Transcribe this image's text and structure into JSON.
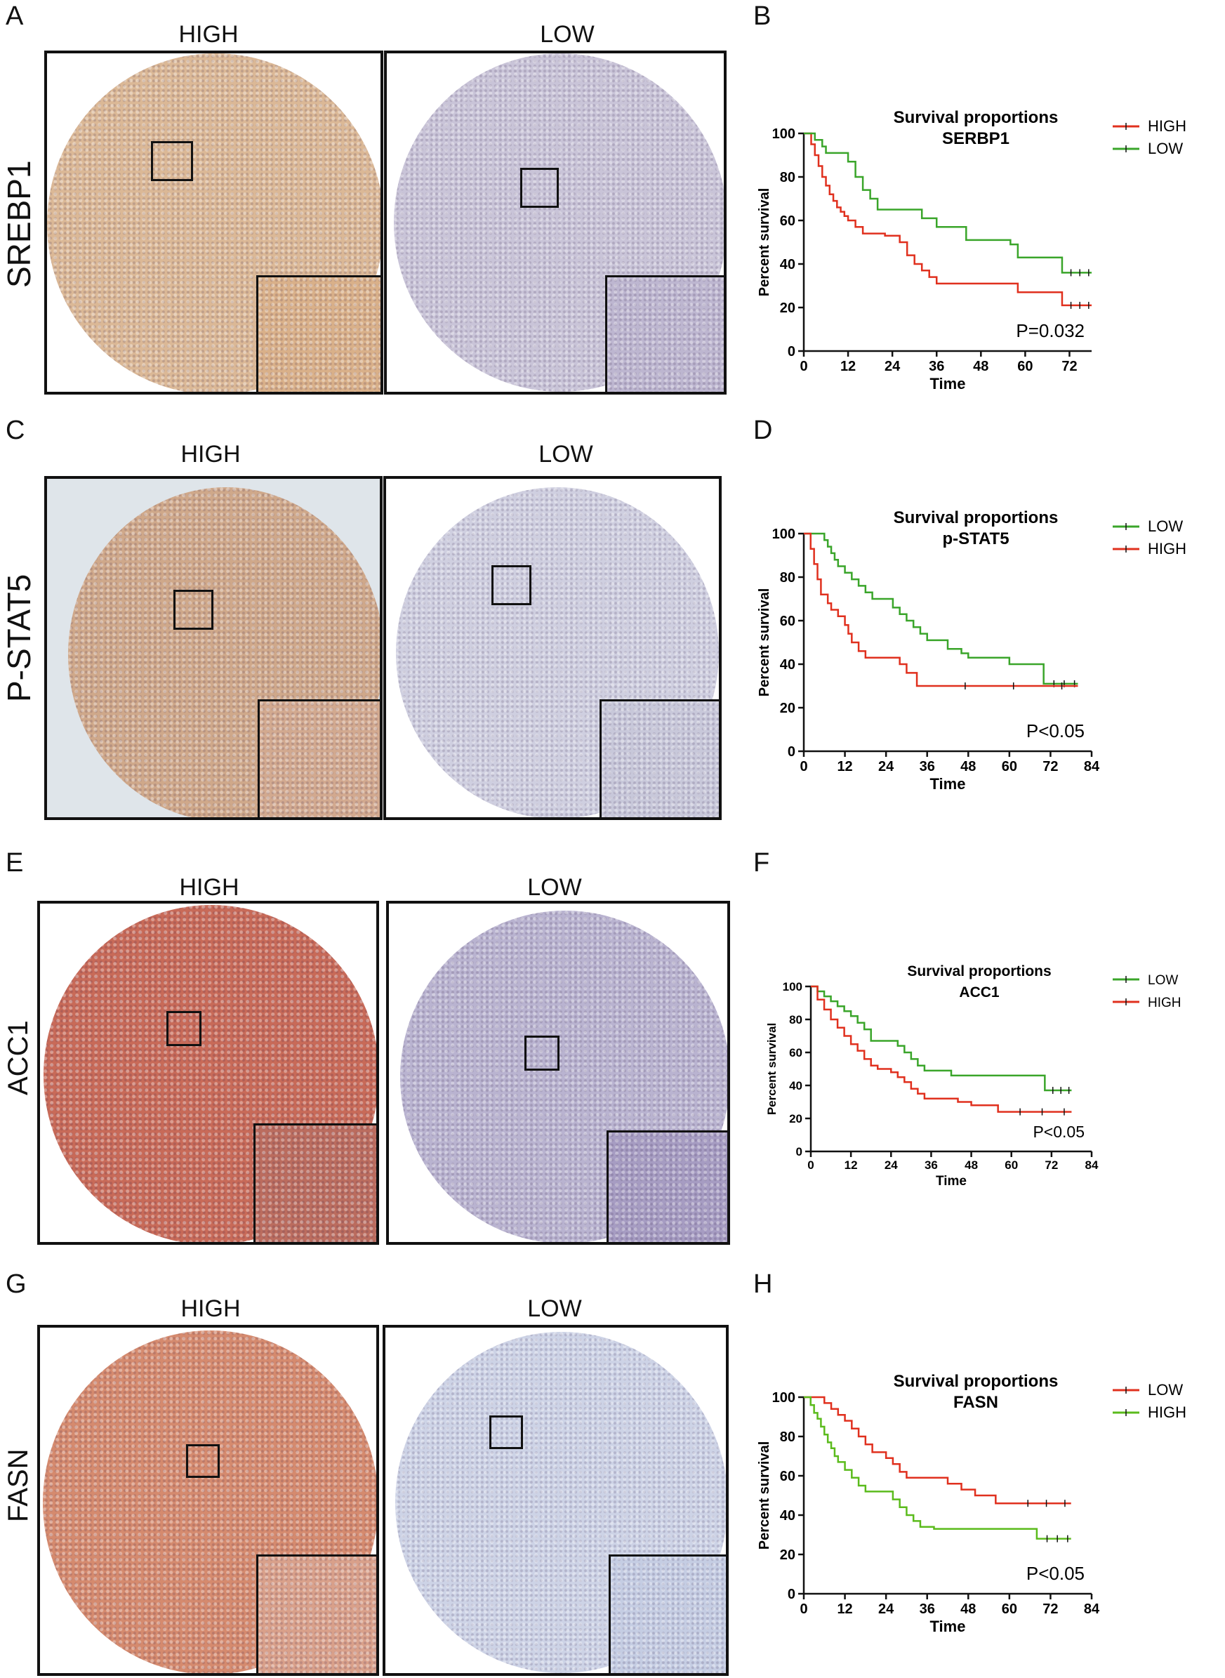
{
  "rows": [
    {
      "letter": "A",
      "chart_letter": "B",
      "marker": "SREBP1",
      "high_label": "HIGH",
      "low_label": "LOW",
      "stain_colors": {
        "high": "#dbb896",
        "low": "#c9c4d8",
        "high_inset": "#d9b089",
        "low_inset": "#bdb6d0"
      }
    },
    {
      "letter": "C",
      "chart_letter": "D",
      "marker": "P-STAT5",
      "high_label": "HIGH",
      "low_label": "LOW",
      "stain_colors": {
        "high": "#cfa88a",
        "low": "#cfcfe0",
        "high_inset": "#d2a98f",
        "low_inset": "#c8c8da"
      }
    },
    {
      "letter": "E",
      "chart_letter": "F",
      "marker": "ACC1",
      "high_label": "HIGH",
      "low_label": "LOW",
      "stain_colors": {
        "high": "#c86a58",
        "low": "#b9b3d0",
        "high_inset": "#bb6c5e",
        "low_inset": "#a69cc2"
      }
    },
    {
      "letter": "G",
      "chart_letter": "H",
      "marker": "FASN",
      "high_label": "HIGH",
      "low_label": "LOW",
      "stain_colors": {
        "high": "#d58a6e",
        "low": "#cdd3e6",
        "high_inset": "#d9a08a",
        "low_inset": "#c5cde3"
      }
    }
  ],
  "chart_data": [
    {
      "type": "line",
      "title": "Survival proportions",
      "subtitle": "SERBP1",
      "xlabel": "Time",
      "ylabel": "Percent survival",
      "xlim": [
        0,
        78
      ],
      "ylim": [
        0,
        100
      ],
      "xticks": [
        0,
        12,
        24,
        36,
        48,
        60,
        72
      ],
      "yticks": [
        0,
        20,
        40,
        60,
        80,
        100
      ],
      "annotation": "P=0.032",
      "legend": "top-right",
      "series": [
        {
          "name": "HIGH",
          "color": "#e0301e",
          "x": [
            0,
            2,
            3,
            4,
            5,
            6,
            7,
            8,
            9,
            10,
            11,
            12,
            14,
            16,
            20,
            22,
            26,
            28,
            30,
            32,
            34,
            36,
            56,
            58,
            70,
            78
          ],
          "y": [
            100,
            95,
            90,
            85,
            80,
            76,
            72,
            69,
            66,
            64,
            62,
            60,
            57,
            54,
            54,
            53,
            50,
            44,
            40,
            37,
            34,
            31,
            31,
            27,
            21,
            21
          ]
        },
        {
          "name": "LOW",
          "color": "#3aa52a",
          "x": [
            0,
            3,
            5,
            6,
            8,
            12,
            14,
            16,
            18,
            20,
            28,
            32,
            36,
            40,
            44,
            56,
            58,
            70,
            78
          ],
          "y": [
            100,
            97,
            94,
            91,
            91,
            87,
            80,
            74,
            70,
            65,
            65,
            61,
            57,
            57,
            51,
            49,
            43,
            36,
            36
          ]
        }
      ]
    },
    {
      "type": "line",
      "title": "Survival proportions",
      "subtitle": "p-STAT5",
      "xlabel": "Time",
      "ylabel": "Percent survival",
      "xlim": [
        0,
        84
      ],
      "ylim": [
        0,
        100
      ],
      "xticks": [
        0,
        12,
        24,
        36,
        48,
        60,
        72,
        84
      ],
      "yticks": [
        0,
        20,
        40,
        60,
        80,
        100
      ],
      "annotation": "P<0.05",
      "legend": "top-right",
      "series": [
        {
          "name": "LOW",
          "color": "#3aa52a",
          "x": [
            0,
            6,
            7,
            8,
            9,
            10,
            12,
            14,
            16,
            18,
            20,
            22,
            26,
            28,
            30,
            32,
            34,
            36,
            42,
            46,
            48,
            60,
            68,
            70,
            80
          ],
          "y": [
            100,
            97,
            94,
            91,
            88,
            85,
            82,
            79,
            76,
            73,
            70,
            70,
            66,
            63,
            60,
            57,
            54,
            51,
            47,
            45,
            43,
            40,
            40,
            31,
            31
          ]
        },
        {
          "name": "HIGH",
          "color": "#e0301e",
          "x": [
            0,
            2,
            3,
            4,
            5,
            7,
            8,
            10,
            12,
            13,
            14,
            16,
            18,
            24,
            28,
            30,
            33,
            80
          ],
          "y": [
            100,
            93,
            86,
            79,
            72,
            68,
            65,
            62,
            58,
            54,
            50,
            46,
            43,
            43,
            40,
            36,
            30,
            30
          ]
        }
      ]
    },
    {
      "type": "line",
      "title": "Survival proportions",
      "subtitle": "ACC1",
      "xlabel": "Time",
      "ylabel": "Percent survival",
      "xlim": [
        0,
        84
      ],
      "ylim": [
        0,
        100
      ],
      "xticks": [
        0,
        12,
        24,
        36,
        48,
        60,
        72,
        84
      ],
      "yticks": [
        0,
        20,
        40,
        60,
        80,
        100
      ],
      "annotation": "P<0.05",
      "legend": "top-right",
      "series": [
        {
          "name": "LOW",
          "color": "#3aa52a",
          "x": [
            0,
            2,
            4,
            6,
            8,
            10,
            12,
            14,
            16,
            18,
            24,
            26,
            28,
            30,
            32,
            34,
            40,
            42,
            70,
            78
          ],
          "y": [
            100,
            97,
            94,
            91,
            88,
            85,
            82,
            78,
            74,
            67,
            67,
            64,
            60,
            56,
            52,
            49,
            49,
            46,
            37,
            37
          ]
        },
        {
          "name": "HIGH",
          "color": "#e0301e",
          "x": [
            0,
            2,
            4,
            6,
            8,
            10,
            12,
            14,
            16,
            18,
            20,
            24,
            26,
            28,
            30,
            32,
            34,
            44,
            48,
            56,
            78
          ],
          "y": [
            100,
            92,
            86,
            80,
            75,
            70,
            65,
            61,
            56,
            52,
            50,
            48,
            45,
            42,
            38,
            35,
            32,
            30,
            28,
            24,
            24
          ]
        }
      ]
    },
    {
      "type": "line",
      "title": "Survival proportions",
      "subtitle": "FASN",
      "xlabel": "Time",
      "ylabel": "Percent survival",
      "xlim": [
        0,
        84
      ],
      "ylim": [
        0,
        100
      ],
      "xticks": [
        0,
        12,
        24,
        36,
        48,
        60,
        72,
        84
      ],
      "yticks": [
        0,
        20,
        40,
        60,
        80,
        100
      ],
      "annotation": "P<0.05",
      "legend": "top-right",
      "series": [
        {
          "name": "LOW",
          "color": "#e0301e",
          "x": [
            0,
            4,
            6,
            8,
            10,
            12,
            14,
            16,
            18,
            20,
            24,
            26,
            28,
            30,
            32,
            34,
            42,
            46,
            50,
            56,
            60,
            78
          ],
          "y": [
            100,
            100,
            97,
            94,
            91,
            88,
            84,
            80,
            76,
            72,
            69,
            66,
            62,
            59,
            59,
            59,
            56,
            53,
            50,
            46,
            46,
            46
          ]
        },
        {
          "name": "HIGH",
          "color": "#5bbb1c",
          "x": [
            0,
            2,
            3,
            4,
            5,
            6,
            7,
            8,
            9,
            10,
            12,
            14,
            16,
            18,
            26,
            28,
            30,
            32,
            34,
            38,
            58,
            68,
            78
          ],
          "y": [
            100,
            96,
            92,
            89,
            85,
            81,
            77,
            74,
            70,
            67,
            63,
            59,
            55,
            52,
            48,
            44,
            40,
            37,
            34,
            33,
            33,
            28,
            28
          ]
        }
      ]
    }
  ]
}
